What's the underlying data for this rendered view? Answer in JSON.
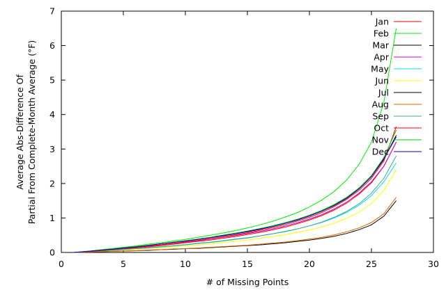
{
  "chart_data": {
    "type": "line",
    "title": "",
    "xlabel": "# of Missing Points",
    "ylabel_lines": [
      "Average Abs-Difference Of",
      "Partial From Complete-Month Average (°F)"
    ],
    "xlim": [
      0,
      30
    ],
    "ylim": [
      0,
      7
    ],
    "xticks": [
      0,
      5,
      10,
      15,
      20,
      25,
      30
    ],
    "yticks": [
      0,
      1,
      2,
      3,
      4,
      5,
      6,
      7
    ],
    "grid": false,
    "legend_position": "top-right",
    "x": [
      1,
      2,
      3,
      4,
      5,
      6,
      7,
      8,
      9,
      10,
      11,
      12,
      13,
      14,
      15,
      16,
      17,
      18,
      19,
      20,
      21,
      22,
      23,
      24,
      25,
      26,
      27
    ],
    "series": [
      {
        "name": "Jan",
        "color": "#ff0000",
        "values": [
          0.0,
          0.02,
          0.05,
          0.07,
          0.1,
          0.13,
          0.16,
          0.2,
          0.24,
          0.28,
          0.32,
          0.36,
          0.41,
          0.46,
          0.52,
          0.58,
          0.65,
          0.73,
          0.83,
          0.94,
          1.07,
          1.23,
          1.43,
          1.69,
          2.02,
          2.5,
          3.2
        ]
      },
      {
        "name": "Feb",
        "color": "#00ee00",
        "values": [
          0.0,
          0.03,
          0.07,
          0.11,
          0.15,
          0.19,
          0.24,
          0.28,
          0.33,
          0.38,
          0.44,
          0.5,
          0.56,
          0.63,
          0.71,
          0.8,
          0.9,
          1.02,
          1.15,
          1.32,
          1.52,
          1.77,
          2.1,
          2.55,
          3.2,
          4.35,
          6.5
        ]
      },
      {
        "name": "Mar",
        "color": "#000000",
        "values": [
          0.0,
          0.02,
          0.06,
          0.09,
          0.13,
          0.17,
          0.21,
          0.25,
          0.29,
          0.34,
          0.38,
          0.43,
          0.48,
          0.54,
          0.6,
          0.67,
          0.75,
          0.84,
          0.94,
          1.06,
          1.2,
          1.37,
          1.58,
          1.85,
          2.2,
          2.7,
          3.4
        ]
      },
      {
        "name": "Apr",
        "color": "#cc00cc",
        "values": [
          0.0,
          0.02,
          0.05,
          0.08,
          0.11,
          0.15,
          0.18,
          0.22,
          0.26,
          0.3,
          0.34,
          0.39,
          0.44,
          0.49,
          0.55,
          0.61,
          0.68,
          0.76,
          0.86,
          0.97,
          1.1,
          1.26,
          1.46,
          1.72,
          2.05,
          2.5,
          3.2
        ]
      },
      {
        "name": "May",
        "color": "#00e0e0",
        "values": [
          0.0,
          0.02,
          0.04,
          0.06,
          0.09,
          0.11,
          0.14,
          0.17,
          0.2,
          0.23,
          0.27,
          0.3,
          0.34,
          0.39,
          0.43,
          0.48,
          0.54,
          0.61,
          0.68,
          0.77,
          0.87,
          1.0,
          1.16,
          1.37,
          1.65,
          2.05,
          2.6
        ]
      },
      {
        "name": "Jun",
        "color": "#ffff00",
        "values": [
          0.0,
          0.02,
          0.03,
          0.05,
          0.07,
          0.09,
          0.12,
          0.14,
          0.17,
          0.19,
          0.22,
          0.25,
          0.29,
          0.32,
          0.36,
          0.41,
          0.46,
          0.51,
          0.58,
          0.65,
          0.74,
          0.85,
          0.99,
          1.17,
          1.42,
          1.8,
          2.4
        ]
      },
      {
        "name": "Jul",
        "color": "#000000",
        "values": [
          0.0,
          0.01,
          0.02,
          0.03,
          0.04,
          0.05,
          0.06,
          0.08,
          0.09,
          0.11,
          0.12,
          0.14,
          0.16,
          0.18,
          0.2,
          0.22,
          0.25,
          0.28,
          0.32,
          0.36,
          0.41,
          0.47,
          0.55,
          0.66,
          0.8,
          1.05,
          1.5
        ]
      },
      {
        "name": "Aug",
        "color": "#e06000",
        "values": [
          0.0,
          0.01,
          0.02,
          0.03,
          0.04,
          0.05,
          0.07,
          0.08,
          0.1,
          0.11,
          0.13,
          0.15,
          0.17,
          0.19,
          0.21,
          0.24,
          0.27,
          0.3,
          0.34,
          0.39,
          0.44,
          0.51,
          0.6,
          0.71,
          0.87,
          1.12,
          1.6
        ]
      },
      {
        "name": "Sep",
        "color": "#40a0a0",
        "values": [
          0.0,
          0.02,
          0.04,
          0.06,
          0.08,
          0.11,
          0.13,
          0.16,
          0.19,
          0.22,
          0.26,
          0.29,
          0.33,
          0.38,
          0.42,
          0.48,
          0.54,
          0.6,
          0.68,
          0.77,
          0.88,
          1.02,
          1.19,
          1.41,
          1.72,
          2.15,
          2.8
        ]
      },
      {
        "name": "Oct",
        "color": "#ff0000",
        "values": [
          0.0,
          0.02,
          0.05,
          0.08,
          0.11,
          0.15,
          0.19,
          0.22,
          0.26,
          0.31,
          0.35,
          0.4,
          0.45,
          0.51,
          0.57,
          0.64,
          0.72,
          0.8,
          0.91,
          1.02,
          1.16,
          1.33,
          1.54,
          1.8,
          2.15,
          2.65,
          3.65
        ]
      },
      {
        "name": "Nov",
        "color": "#00cc00",
        "values": [
          0.0,
          0.03,
          0.06,
          0.09,
          0.13,
          0.17,
          0.21,
          0.25,
          0.3,
          0.34,
          0.39,
          0.44,
          0.5,
          0.56,
          0.62,
          0.69,
          0.77,
          0.86,
          0.96,
          1.08,
          1.22,
          1.39,
          1.6,
          1.87,
          2.23,
          2.75,
          3.55
        ]
      },
      {
        "name": "Dec",
        "color": "#0000cc",
        "values": [
          0.0,
          0.03,
          0.06,
          0.09,
          0.13,
          0.16,
          0.2,
          0.25,
          0.29,
          0.33,
          0.38,
          0.43,
          0.49,
          0.54,
          0.61,
          0.68,
          0.75,
          0.84,
          0.94,
          1.06,
          1.2,
          1.36,
          1.57,
          1.84,
          2.2,
          2.72,
          3.35
        ]
      }
    ]
  }
}
